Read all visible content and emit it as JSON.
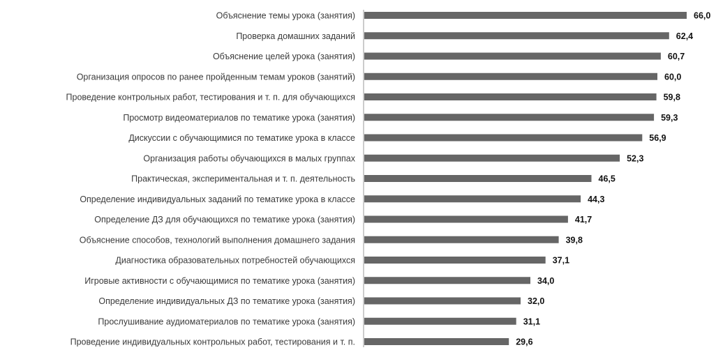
{
  "chart_data": {
    "type": "bar",
    "orientation": "horizontal",
    "categories": [
      "Объяснение темы урока (занятия)",
      "Проверка домашних заданий",
      "Объяснение целей урока (занятия)",
      "Организация опросов по ранее пройденным темам уроков (занятий)",
      "Проведение контрольных работ, тестирования и т. п. для обучающихся",
      "Просмотр видеоматериалов по тематике урока (занятия)",
      "Дискуссии с обучающимися по тематике урока в классе",
      "Организация работы обучающихся в малых группах",
      "Практическая, экспериментальная и т. п. деятельность",
      "Определение индивидуальных заданий по тематике урока в классе",
      "Определение ДЗ для обучающихся по тематике урока (занятия)",
      "Объяснение способов, технологий выполнения домашнего задания",
      "Диагностика образовательных потребностей обучающихся",
      "Игровые активности с обучающимися по тематике урока (занятия)",
      "Определение индивидуальных ДЗ по тематике урока (занятия)",
      "Прослушивание аудиоматериалов по тематике урока (занятия)",
      "Проведение индивидуальных контрольных работ, тестирования и т. п."
    ],
    "values": [
      66.0,
      62.4,
      60.7,
      60.0,
      59.8,
      59.3,
      56.9,
      52.3,
      46.5,
      44.3,
      41.7,
      39.8,
      37.1,
      34.0,
      32.0,
      31.1,
      29.6
    ],
    "value_labels": [
      "66,0",
      "62,4",
      "60,7",
      "60,0",
      "59,8",
      "59,3",
      "56,9",
      "52,3",
      "46,5",
      "44,3",
      "41,7",
      "39,8",
      "37,1",
      "34,0",
      "32,0",
      "31,1",
      "29,6"
    ],
    "title": "",
    "xlabel": "",
    "ylabel": "",
    "xlim": [
      0,
      66
    ],
    "grid": false,
    "legend": "none",
    "colors": {
      "bar": "#666666",
      "axis": "#9a9a9a",
      "category_text": "#3a3a3a",
      "value_text": "#111111"
    }
  }
}
